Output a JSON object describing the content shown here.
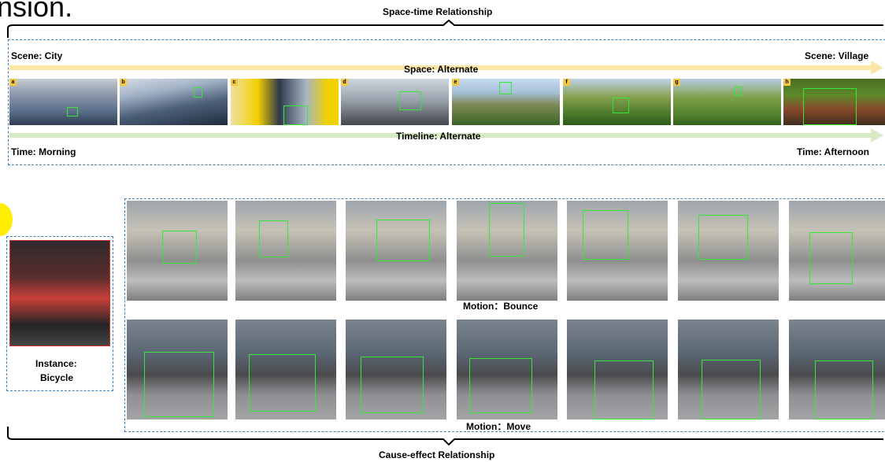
{
  "heading_fragment": "nsion.",
  "top": {
    "title": "Space-time Relationship",
    "scene_left": "Scene: City",
    "scene_right": "Scene: Village",
    "space_label": "Space: Alternate",
    "timeline_label": "Timeline: Alternate",
    "time_left": "Time: Morning",
    "time_right": "Time: Afternoon",
    "frame_tags": [
      "a",
      "b",
      "c",
      "d",
      "e",
      "f",
      "g",
      "h"
    ]
  },
  "bottom": {
    "title": "Cause-effect Relationship",
    "instance_label_line1": "Instance:",
    "instance_label_line2": "Bicycle",
    "motion_bounce": "Motion：Bounce",
    "motion_move": "Motion：Move"
  },
  "colors": {
    "space_arrow": "#fbe6a6",
    "timeline_arrow": "#d6ebc4",
    "dashed_border": "#3d7fb8",
    "bbox": "#35e835",
    "tag": "#f5c842",
    "highlight_circle": "#ffee00"
  }
}
